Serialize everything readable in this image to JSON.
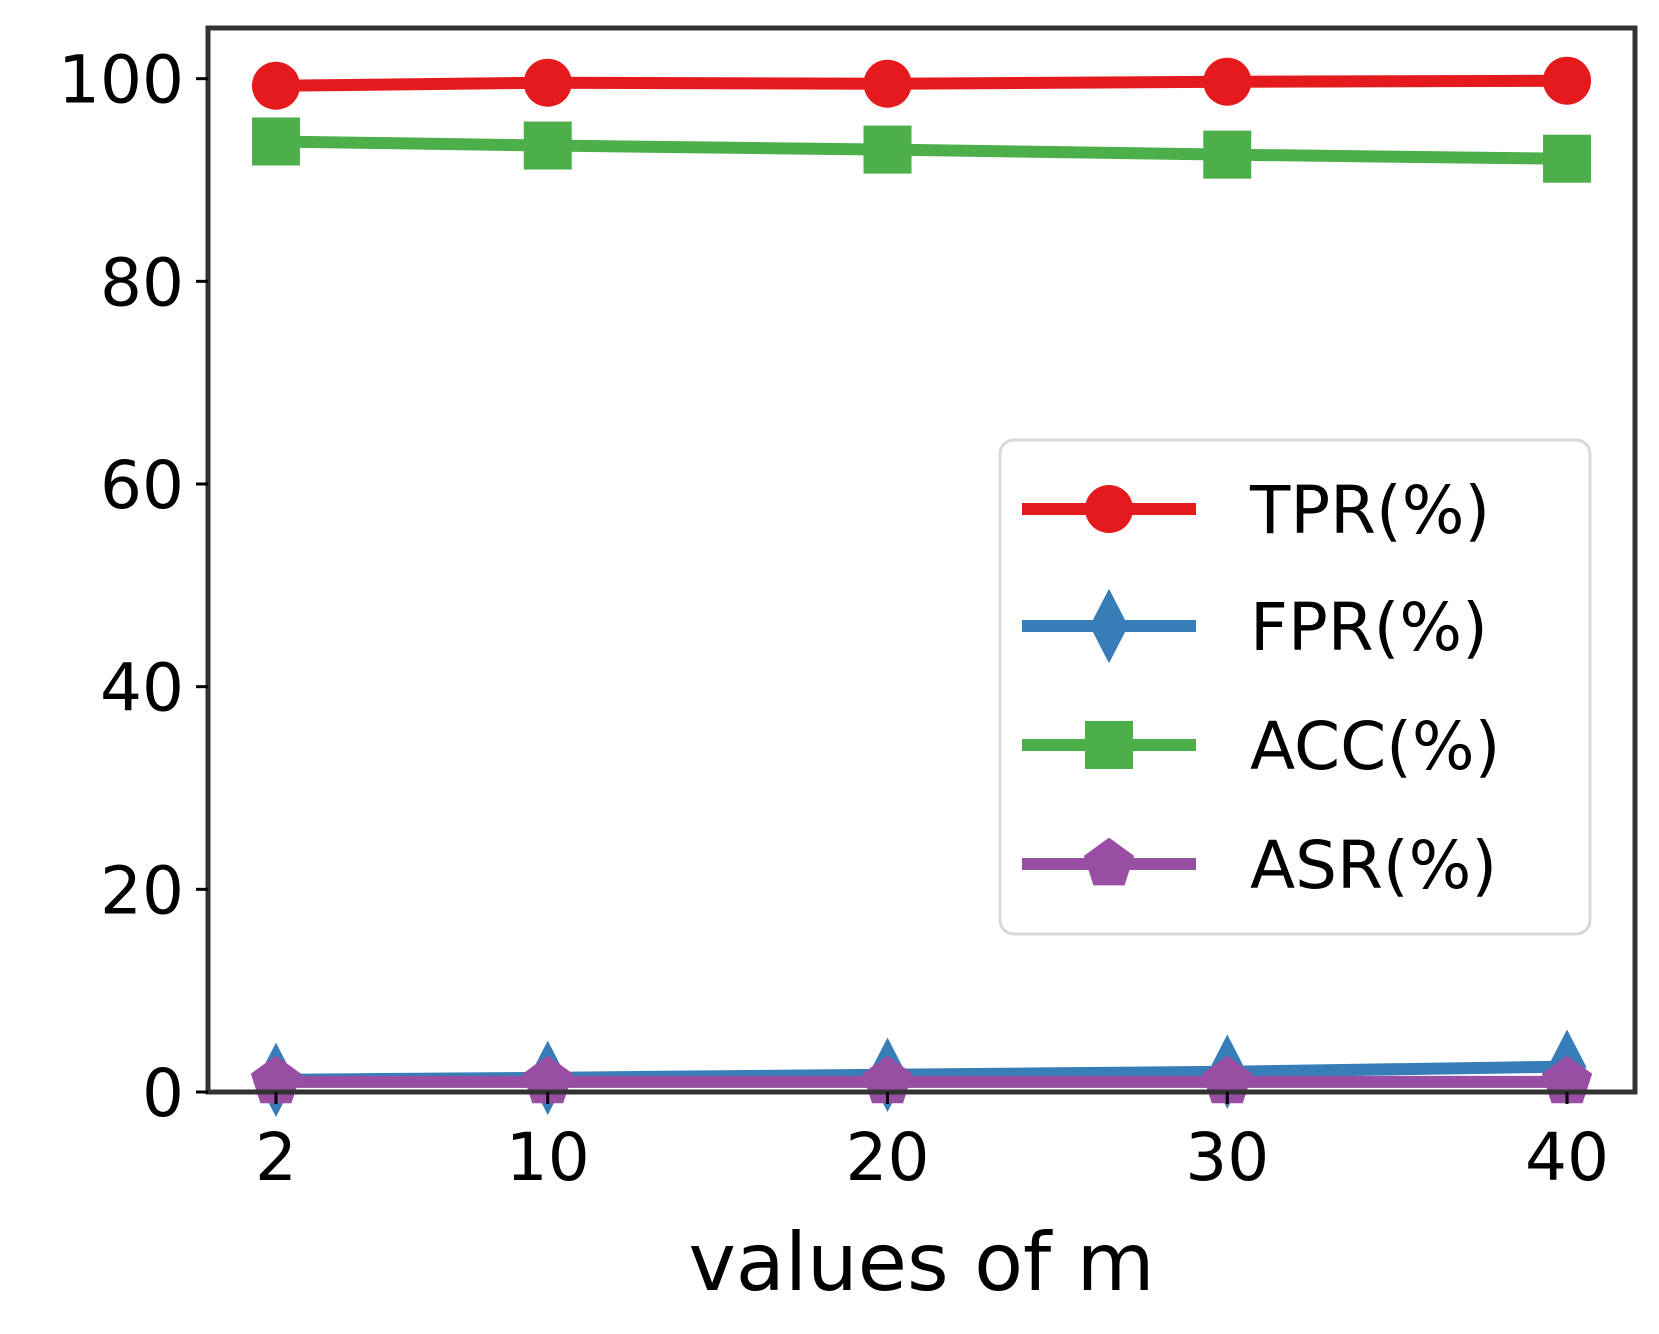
{
  "chart_data": {
    "type": "line",
    "title": "",
    "xlabel": "values of m",
    "ylabel": "",
    "x": [
      2,
      10,
      20,
      30,
      40
    ],
    "xticks": [
      "2",
      "10",
      "20",
      "30",
      "40"
    ],
    "yticks": [
      "0",
      "20",
      "40",
      "60",
      "80",
      "100"
    ],
    "ylim": [
      0,
      105
    ],
    "xlim": [
      0,
      42
    ],
    "grid": false,
    "legend_position": "center-right",
    "series": [
      {
        "name": "TPR(%)",
        "values": [
          99.3,
          99.6,
          99.5,
          99.7,
          99.8
        ],
        "color": "#e41a1c",
        "marker": "circle"
      },
      {
        "name": "FPR(%)",
        "values": [
          1.2,
          1.4,
          1.7,
          2.0,
          2.5
        ],
        "color": "#377eb8",
        "marker": "diamond"
      },
      {
        "name": "ACC(%)",
        "values": [
          93.8,
          93.4,
          93.0,
          92.5,
          92.1
        ],
        "color": "#4daf4a",
        "marker": "square"
      },
      {
        "name": "ASR(%)",
        "values": [
          1.0,
          1.0,
          1.0,
          1.0,
          1.0
        ],
        "color": "#984ea3",
        "marker": "pentagon"
      }
    ]
  }
}
